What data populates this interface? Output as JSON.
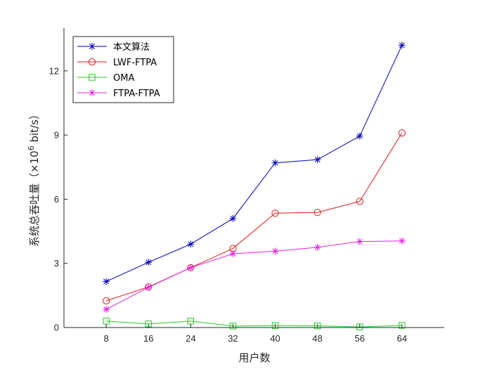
{
  "chart_data": {
    "type": "line",
    "categories": [
      "8",
      "16",
      "24",
      "32",
      "40",
      "48",
      "56",
      "64"
    ],
    "x": [
      8,
      16,
      24,
      32,
      40,
      48,
      56,
      64
    ],
    "xlim": [
      0,
      72
    ],
    "ylim": [
      0,
      14
    ],
    "yticks": [
      0,
      3,
      6,
      9,
      12
    ],
    "xlabel": "用户数",
    "ylabel_main": "系统总吞吐量（×10",
    "ylabel_exp": "6",
    "ylabel_unit": " bit/s）",
    "grid": false,
    "legend_position": "top-left",
    "series": [
      {
        "name": "本文算法",
        "color": "#0000b4",
        "marker": "asterisk",
        "values": [
          2.15,
          3.05,
          3.9,
          5.1,
          7.7,
          7.85,
          8.95,
          13.2
        ]
      },
      {
        "name": "LWF-FTPA",
        "color": "#e41a1c",
        "marker": "circle",
        "values": [
          1.25,
          1.9,
          2.8,
          3.7,
          5.35,
          5.38,
          5.9,
          9.1
        ]
      },
      {
        "name": "OMA",
        "color": "#22cc22",
        "marker": "square",
        "values": [
          0.3,
          0.17,
          0.3,
          0.07,
          0.09,
          0.08,
          0.03,
          0.1
        ]
      },
      {
        "name": "FTPA-FTPA",
        "color": "#e020e0",
        "marker": "asterisk",
        "values": [
          0.85,
          1.88,
          2.8,
          3.45,
          3.57,
          3.75,
          4.02,
          4.05
        ]
      }
    ]
  }
}
